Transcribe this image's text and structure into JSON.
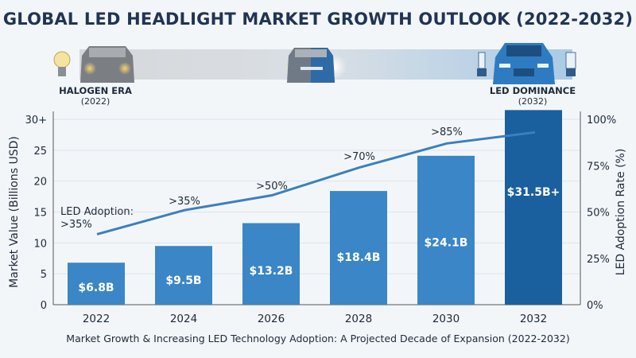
{
  "title": "GLOBAL LED HEADLIGHT MARKET GROWTH OUTLOOK (2022-2032)",
  "banner": {
    "left": {
      "label": "HALOGEN ERA",
      "year": "(2022)",
      "icon": "halogen-bulb-icon"
    },
    "right": {
      "label": "LED DOMINANCE",
      "year": "(2032)",
      "icon": "led-bulb-icon"
    }
  },
  "footer": "Market Growth & Increasing LED Technology Adoption: A Projected Decade of Expansion (2022-2032)",
  "chart_data": {
    "type": "bar+line",
    "categories": [
      "2022",
      "2024",
      "2026",
      "2028",
      "2030",
      "2032"
    ],
    "bars": {
      "values": [
        6.8,
        9.5,
        13.2,
        18.4,
        24.1,
        31.5
      ],
      "labels": [
        "$6.8B",
        "$9.5B",
        "$13.2B",
        "$18.4B",
        "$24.1B",
        "$31.5B+"
      ],
      "color": "#3a86c6",
      "highlight_color": "#1a5f9e"
    },
    "line": {
      "values": [
        38,
        51,
        59,
        74,
        87,
        93
      ],
      "labels": [
        "LED Adoption:\n>35%",
        ">35%",
        ">50%",
        ">70%",
        ">85%",
        ""
      ],
      "color": "#3b80bd"
    },
    "ylabel": "Market Value (Billions USD)",
    "ylim": [
      0,
      30
    ],
    "yticks": [
      "0",
      "5",
      "10",
      "15",
      "20",
      "25",
      "30+"
    ],
    "y2label": "LED Adoption Rate (%)",
    "y2lim": [
      0,
      100
    ],
    "y2ticks": [
      "0%",
      "25%",
      "50%",
      "75%",
      "100%"
    ],
    "grid": true
  }
}
